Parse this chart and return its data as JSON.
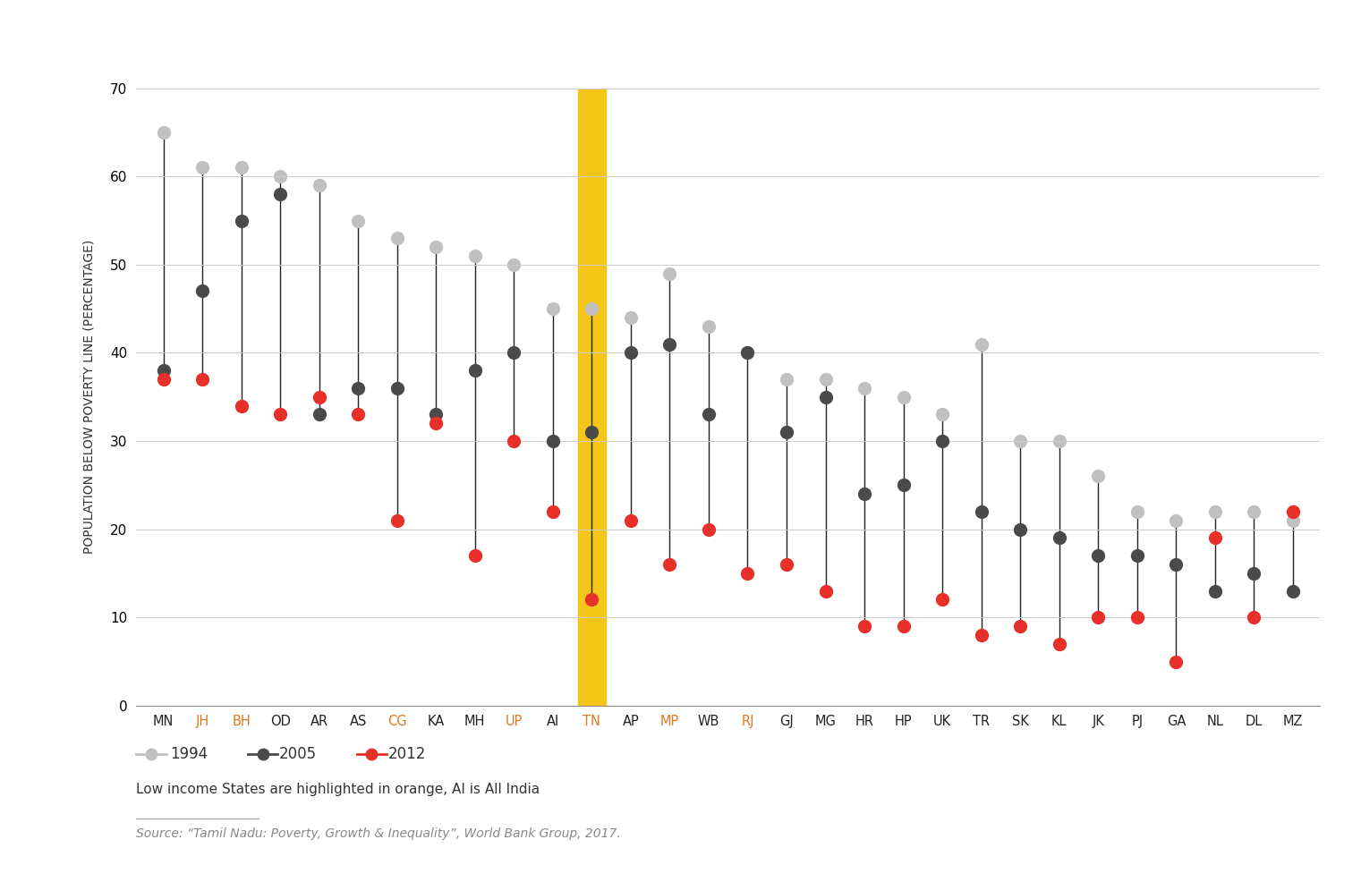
{
  "states": [
    "MN",
    "JH",
    "BH",
    "OD",
    "AR",
    "AS",
    "CG",
    "KA",
    "MH",
    "UP",
    "AI",
    "TN",
    "AP",
    "MP",
    "WB",
    "RJ",
    "GJ",
    "MG",
    "HR",
    "HP",
    "UK",
    "TR",
    "SK",
    "KL",
    "JK",
    "PJ",
    "GA",
    "NL",
    "DL",
    "MZ"
  ],
  "highlighted_orange": [
    "JH",
    "BH",
    "CG",
    "UP",
    "TN",
    "MP",
    "RJ"
  ],
  "tn_index": 11,
  "ai_index": 10,
  "val_1994": [
    65,
    61,
    61,
    60,
    59,
    55,
    53,
    52,
    51,
    50,
    45,
    45,
    44,
    49,
    43,
    40,
    37,
    37,
    36,
    35,
    33,
    41,
    30,
    30,
    26,
    22,
    21,
    22,
    22,
    21
  ],
  "val_2005": [
    38,
    47,
    55,
    58,
    33,
    36,
    36,
    33,
    38,
    40,
    30,
    31,
    40,
    41,
    33,
    40,
    31,
    35,
    24,
    25,
    30,
    22,
    20,
    19,
    17,
    17,
    16,
    13,
    15,
    13
  ],
  "val_2012": [
    37,
    37,
    34,
    33,
    35,
    33,
    21,
    32,
    17,
    30,
    22,
    12,
    21,
    16,
    20,
    15,
    16,
    13,
    9,
    9,
    12,
    8,
    9,
    7,
    10,
    10,
    5,
    19,
    10,
    22
  ],
  "color_1994": "#c0c0c0",
  "color_2005": "#4a4a4a",
  "color_2012": "#e8302a",
  "highlight_color": "#f5c518",
  "highlight_label_color_orange": "#e07820",
  "normal_label_color": "#222222",
  "ylabel": "POPULATION BELOW POVERTY LINE (PERCENTAGE)",
  "ylim": [
    0,
    70
  ],
  "yticks": [
    0,
    10,
    20,
    30,
    40,
    50,
    60,
    70
  ],
  "source_text": "Source: “Tamil Nadu: Poverty, Growth & Inequality”, World Bank Group, 2017.",
  "note_text": "Low income States are highlighted in orange, AI is All India",
  "background_color": "#ffffff",
  "grid_color": "#cccccc"
}
